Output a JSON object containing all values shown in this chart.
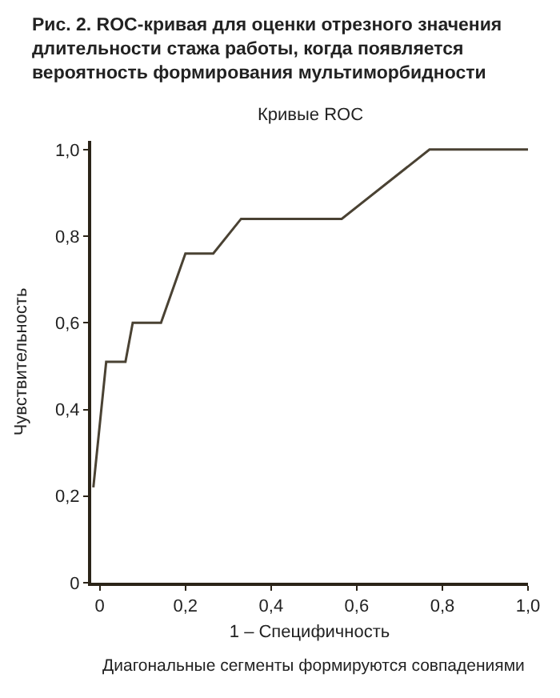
{
  "chart_data": {
    "type": "line",
    "title": "Рис. 2. ROC-кривая для оценки отрезного значения длительности стажа работы, когда появляется вероятность формирования мультиморбидности",
    "subtitle": "Кривые ROC",
    "xlabel": "1 – Специфичность",
    "ylabel": "Чувствительность",
    "annotations": [
      "Диагональные сегменты формируются совпадениями"
    ],
    "x": [
      -0.015,
      0.015,
      0.06,
      0.077,
      0.143,
      0.2,
      0.265,
      0.33,
      0.565,
      0.77,
      1.0
    ],
    "series": [
      {
        "color": "#4a4233",
        "values": [
          0.22,
          0.51,
          0.51,
          0.6,
          0.6,
          0.76,
          0.76,
          0.84,
          0.84,
          1.0,
          1.0
        ]
      }
    ],
    "xlim": [
      -0.02,
      1.0
    ],
    "ylim": [
      0,
      1.02
    ],
    "xticks": [
      {
        "value": 0,
        "label": "0"
      },
      {
        "value": 0.2,
        "label": "0,2"
      },
      {
        "value": 0.4,
        "label": "0,4"
      },
      {
        "value": 0.6,
        "label": "0,6"
      },
      {
        "value": 0.8,
        "label": "0,8"
      },
      {
        "value": 1.0,
        "label": "1,0"
      }
    ],
    "yticks": [
      {
        "value": 0,
        "label": "0"
      },
      {
        "value": 0.2,
        "label": "0,2"
      },
      {
        "value": 0.4,
        "label": "0,4"
      },
      {
        "value": 0.6,
        "label": "0,6"
      },
      {
        "value": 0.8,
        "label": "0,8"
      },
      {
        "value": 1.0,
        "label": "1,0"
      }
    ],
    "marker": "none",
    "line_style": "solid"
  }
}
